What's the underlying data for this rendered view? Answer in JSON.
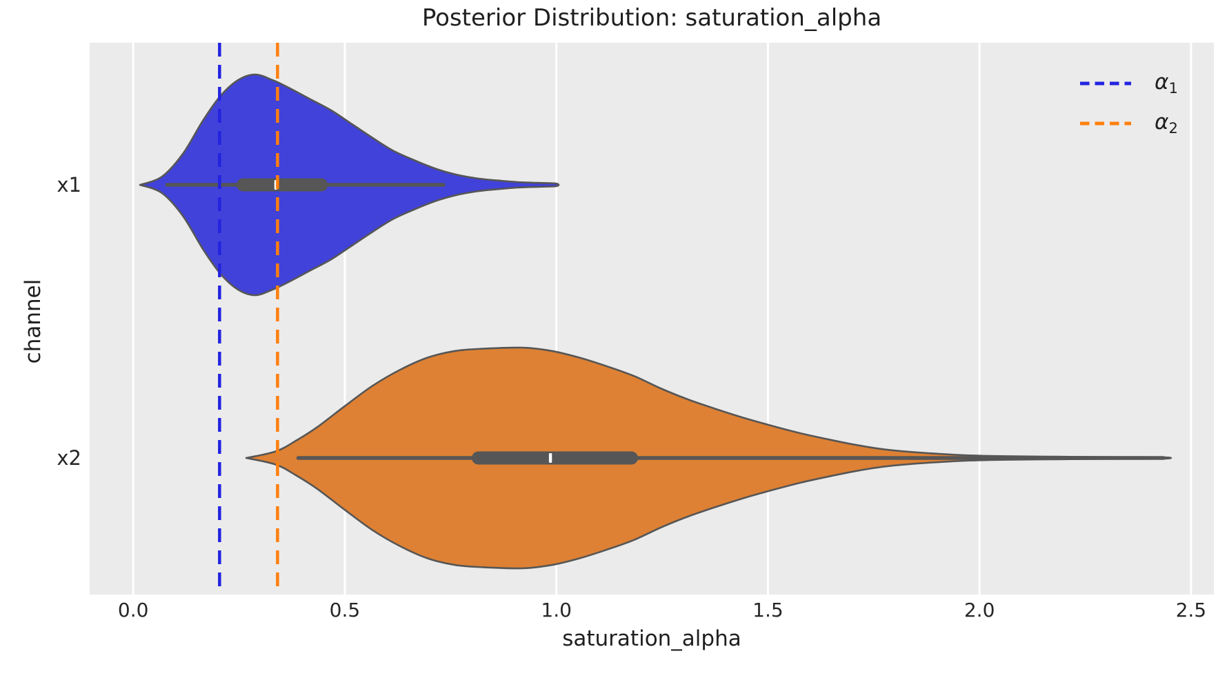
{
  "figure": {
    "title": "Posterior Distribution: saturation_alpha",
    "x_axis_label": "saturation_alpha",
    "y_axis_label": "channel"
  },
  "legend": {
    "position": "upper right",
    "entries": [
      {
        "symbol": "α",
        "subscript": "1",
        "color": "#2323e1",
        "linestyle": "dashed"
      },
      {
        "symbol": "α",
        "subscript": "2",
        "color": "#ff7f0e",
        "linestyle": "dashed"
      }
    ]
  },
  "style": {
    "plot_background": "#ebebeb",
    "grid_color": "#ffffff",
    "outline_color": "#565656",
    "median_color": "#ffffff",
    "text_color": "#262626"
  },
  "chart_data": {
    "type": "violin",
    "orientation": "horizontal",
    "title": "Posterior Distribution: saturation_alpha",
    "xlabel": "saturation_alpha",
    "ylabel": "channel",
    "categories": [
      "x1",
      "x2"
    ],
    "x_tick_labels": [
      "0.0",
      "0.5",
      "1.0",
      "1.5",
      "2.0",
      "2.5"
    ],
    "x_tick_values": [
      0,
      0.5,
      1.0,
      1.5,
      2.0,
      2.5
    ],
    "xlim": [
      -0.103,
      2.554
    ],
    "grid": "vertical-only",
    "legend_position": "upper right",
    "reference_lines": [
      {
        "symbol": "α",
        "subscript": "1",
        "value": 0.204,
        "color": "#2323e1",
        "linestyle": "dashed"
      },
      {
        "symbol": "α",
        "subscript": "2",
        "value": 0.341,
        "color": "#ff7f0e",
        "linestyle": "dashed"
      }
    ],
    "series": [
      {
        "channel": "x1",
        "fill_color": "#4142d9",
        "box": {
          "whisker_low": 0.08,
          "q1": 0.244,
          "median": 0.337,
          "q3": 0.46,
          "whisker_high": 0.733
        },
        "kde_x": [
          0.016,
          0.068,
          0.117,
          0.166,
          0.207,
          0.248,
          0.288,
          0.329,
          0.37,
          0.419,
          0.468,
          0.517,
          0.566,
          0.614,
          0.663,
          0.712,
          0.761,
          0.81,
          0.859,
          0.908,
          0.957,
          1.0
        ],
        "kde_density": [
          0,
          0.075,
          0.28,
          0.59,
          0.81,
          0.95,
          1.0,
          0.95,
          0.875,
          0.775,
          0.675,
          0.55,
          0.425,
          0.31,
          0.225,
          0.15,
          0.095,
          0.06,
          0.04,
          0.025,
          0.018,
          0.012
        ]
      },
      {
        "channel": "x2",
        "fill_color": "#de8134",
        "box": {
          "whisker_low": 0.39,
          "q1": 0.8,
          "median": 0.986,
          "q3": 1.193,
          "whisker_high": 2.435
        },
        "kde_x": [
          0.267,
          0.337,
          0.386,
          0.435,
          0.5,
          0.566,
          0.631,
          0.696,
          0.761,
          0.826,
          0.919,
          0.989,
          1.054,
          1.12,
          1.185,
          1.25,
          1.315,
          1.38,
          1.446,
          1.511,
          1.576,
          1.641,
          1.706,
          1.771,
          1.837,
          1.902,
          1.967,
          2.065,
          2.179,
          2.293,
          2.435
        ],
        "kde_density": [
          0,
          0.06,
          0.16,
          0.28,
          0.47,
          0.655,
          0.8,
          0.91,
          0.97,
          0.99,
          1.0,
          0.97,
          0.91,
          0.83,
          0.74,
          0.625,
          0.525,
          0.44,
          0.36,
          0.29,
          0.225,
          0.17,
          0.12,
          0.08,
          0.055,
          0.038,
          0.025,
          0.016,
          0.012,
          0.009,
          0.006
        ]
      }
    ]
  }
}
